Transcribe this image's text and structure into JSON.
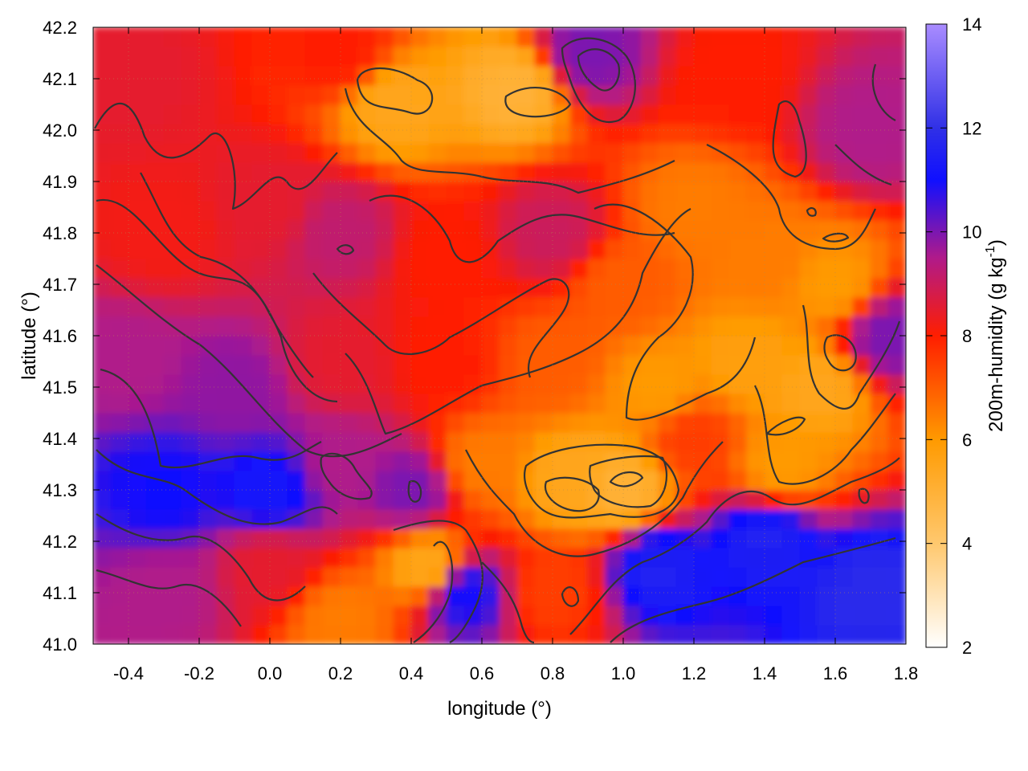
{
  "chart_data": {
    "type": "heatmap",
    "title": "",
    "xlabel": "longitude (°)",
    "ylabel": "latitude (°)",
    "colorbar_label_main": "200m-humidity (g kg",
    "colorbar_label_exp": "-1",
    "colorbar_label_close": ")",
    "xlim": [
      -0.5,
      1.8
    ],
    "ylim": [
      41.0,
      42.2
    ],
    "x_ticks": [
      "-0.4",
      "-0.2",
      "0.0",
      "0.2",
      "0.4",
      "0.6",
      "0.8",
      "1.0",
      "1.2",
      "1.4",
      "1.6",
      "1.8"
    ],
    "x_tick_values": [
      -0.4,
      -0.2,
      0.0,
      0.2,
      0.4,
      0.6,
      0.8,
      1.0,
      1.2,
      1.4,
      1.6,
      1.8
    ],
    "y_ticks": [
      "41.0",
      "41.1",
      "41.2",
      "41.3",
      "41.4",
      "41.5",
      "41.6",
      "41.7",
      "41.8",
      "41.9",
      "42.0",
      "42.1",
      "42.2"
    ],
    "y_tick_values": [
      41.0,
      41.1,
      41.2,
      41.3,
      41.4,
      41.5,
      41.6,
      41.7,
      41.8,
      41.9,
      42.0,
      42.1,
      42.2
    ],
    "colorbar_range": [
      2,
      14
    ],
    "colorbar_ticks": [
      "2",
      "4",
      "6",
      "8",
      "10",
      "12",
      "14"
    ],
    "colorbar_tick_values": [
      2,
      4,
      6,
      8,
      10,
      12,
      14
    ],
    "colormap": [
      {
        "value": 2,
        "color": "#ffffff"
      },
      {
        "value": 4,
        "color": "#ffc86e"
      },
      {
        "value": 6,
        "color": "#ff9a00"
      },
      {
        "value": 8,
        "color": "#ff1e00"
      },
      {
        "value": 9.5,
        "color": "#b01a8a"
      },
      {
        "value": 11,
        "color": "#1010ff"
      },
      {
        "value": 12,
        "color": "#3030e6"
      },
      {
        "value": 14,
        "color": "#a98cff"
      }
    ],
    "contours": "on",
    "grid": "on (dotted)",
    "field_samples": [
      {
        "lon": -0.4,
        "lat": 42.1,
        "value": 8.5
      },
      {
        "lon": 0.2,
        "lat": 42.15,
        "value": 8.0
      },
      {
        "lon": 0.35,
        "lat": 42.05,
        "value": 5.5
      },
      {
        "lon": 0.7,
        "lat": 42.08,
        "value": 5.0
      },
      {
        "lon": 0.9,
        "lat": 42.15,
        "value": 10.0
      },
      {
        "lon": 1.3,
        "lat": 42.1,
        "value": 8.0
      },
      {
        "lon": 1.7,
        "lat": 42.0,
        "value": 9.5
      },
      {
        "lon": 1.75,
        "lat": 41.6,
        "value": 10.0
      },
      {
        "lon": -0.3,
        "lat": 41.8,
        "value": 8.2
      },
      {
        "lon": 0.0,
        "lat": 41.85,
        "value": 8.5
      },
      {
        "lon": 0.2,
        "lat": 41.8,
        "value": 9.2
      },
      {
        "lon": 0.5,
        "lat": 41.75,
        "value": 8.0
      },
      {
        "lon": 0.8,
        "lat": 41.8,
        "value": 9.0
      },
      {
        "lon": 1.0,
        "lat": 41.7,
        "value": 7.0
      },
      {
        "lon": 1.2,
        "lat": 41.85,
        "value": 6.5
      },
      {
        "lon": 1.4,
        "lat": 41.75,
        "value": 6.5
      },
      {
        "lon": 1.6,
        "lat": 41.7,
        "value": 6.0
      },
      {
        "lon": -0.4,
        "lat": 41.55,
        "value": 9.5
      },
      {
        "lon": -0.1,
        "lat": 41.5,
        "value": 9.8
      },
      {
        "lon": 0.2,
        "lat": 41.55,
        "value": 8.5
      },
      {
        "lon": 0.5,
        "lat": 41.55,
        "value": 8.0
      },
      {
        "lon": 0.8,
        "lat": 41.55,
        "value": 7.0
      },
      {
        "lon": 1.1,
        "lat": 41.5,
        "value": 6.0
      },
      {
        "lon": 1.35,
        "lat": 41.55,
        "value": 5.8
      },
      {
        "lon": 1.55,
        "lat": 41.5,
        "value": 5.5
      },
      {
        "lon": -0.3,
        "lat": 41.3,
        "value": 11.0
      },
      {
        "lon": 0.0,
        "lat": 41.3,
        "value": 11.2
      },
      {
        "lon": 0.2,
        "lat": 41.35,
        "value": 9.5
      },
      {
        "lon": 0.4,
        "lat": 41.3,
        "value": 10.0
      },
      {
        "lon": 0.6,
        "lat": 41.35,
        "value": 6.5
      },
      {
        "lon": 0.85,
        "lat": 41.32,
        "value": 5.5
      },
      {
        "lon": 1.0,
        "lat": 41.3,
        "value": 5.0
      },
      {
        "lon": 1.2,
        "lat": 41.4,
        "value": 7.5
      },
      {
        "lon": 1.45,
        "lat": 41.35,
        "value": 6.0
      },
      {
        "lon": -0.3,
        "lat": 41.1,
        "value": 9.5
      },
      {
        "lon": 0.0,
        "lat": 41.15,
        "value": 8.5
      },
      {
        "lon": 0.2,
        "lat": 41.05,
        "value": 6.5
      },
      {
        "lon": 0.45,
        "lat": 41.15,
        "value": 5.5
      },
      {
        "lon": 0.55,
        "lat": 41.1,
        "value": 11.0
      },
      {
        "lon": 0.8,
        "lat": 41.1,
        "value": 7.5
      },
      {
        "lon": 1.1,
        "lat": 41.15,
        "value": 11.5
      },
      {
        "lon": 1.4,
        "lat": 41.2,
        "value": 11.5
      },
      {
        "lon": 1.7,
        "lat": 41.1,
        "value": 11.8
      }
    ]
  }
}
